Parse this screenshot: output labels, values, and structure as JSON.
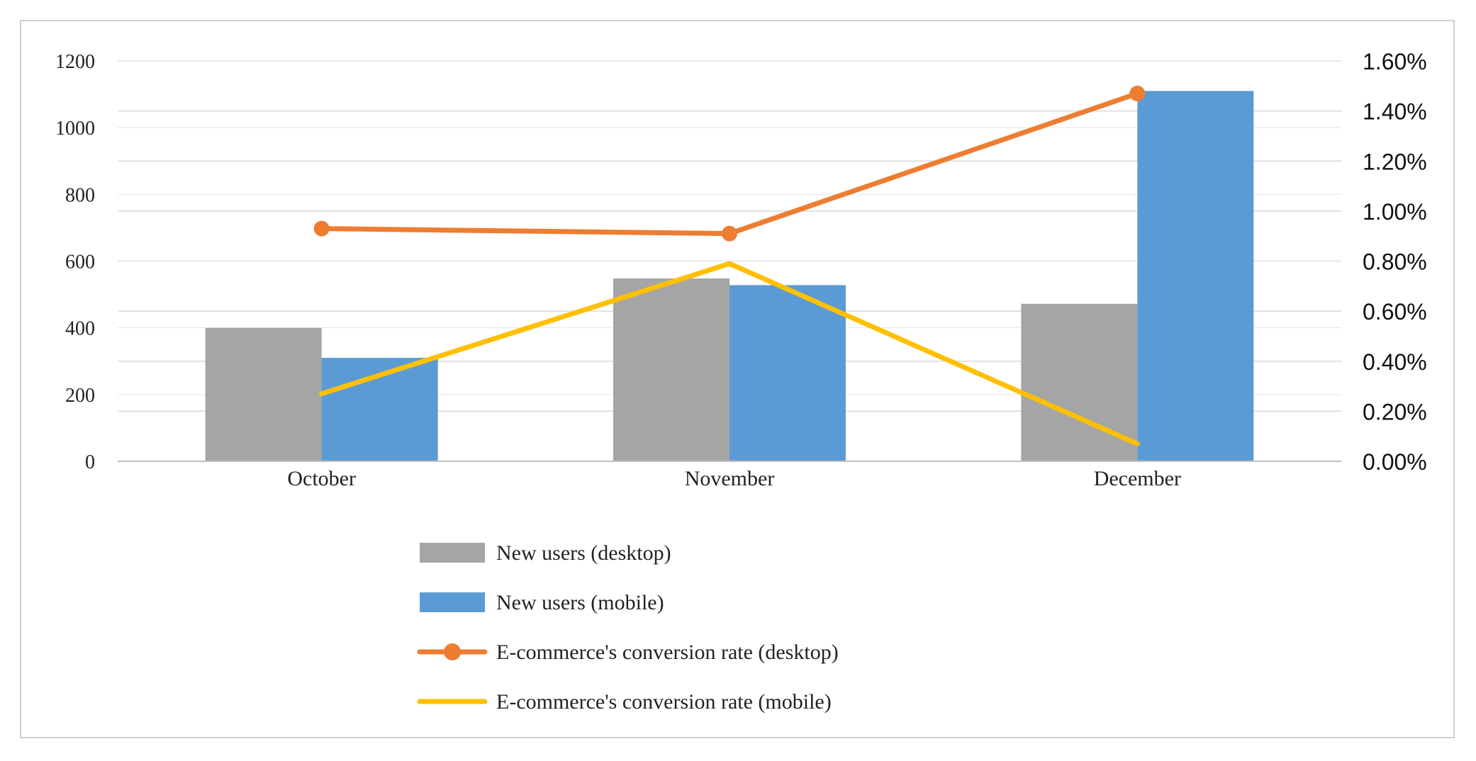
{
  "chart_data": {
    "type": "bar",
    "categories": [
      "October",
      "November",
      "December"
    ],
    "series": [
      {
        "name": "New users (desktop)",
        "kind": "bar",
        "axis": "left",
        "color": "#a5a5a5",
        "values": [
          400,
          548,
          472
        ]
      },
      {
        "name": "New users (mobile)",
        "kind": "bar",
        "axis": "left",
        "color": "#5b9bd5",
        "values": [
          310,
          528,
          1110
        ]
      },
      {
        "name": "E-commerce's conversion rate (desktop)",
        "kind": "line",
        "marker": "circle",
        "axis": "right",
        "color": "#ed7d31",
        "values": [
          0.93,
          0.91,
          1.47
        ]
      },
      {
        "name": "E-commerce's conversion rate (mobile)",
        "kind": "line",
        "marker": "none",
        "axis": "right",
        "color": "#ffc000",
        "values": [
          0.27,
          0.79,
          0.07
        ]
      }
    ],
    "ylim_left": [
      0,
      1200
    ],
    "yticks_left": [
      "0",
      "200",
      "400",
      "600",
      "800",
      "1000",
      "1200"
    ],
    "ylim_right": [
      0,
      1.6
    ],
    "yticks_right": [
      "0.00%",
      "0.20%",
      "0.40%",
      "0.60%",
      "0.80%",
      "1.00%",
      "1.20%",
      "1.40%",
      "1.60%"
    ],
    "grid": true,
    "legend_position": "bottom"
  }
}
